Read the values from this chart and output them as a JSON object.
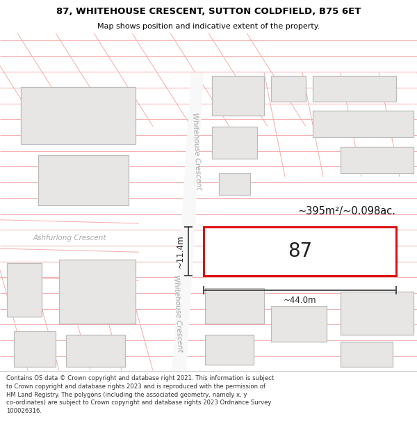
{
  "title_line1": "87, WHITEHOUSE CRESCENT, SUTTON COLDFIELD, B75 6ET",
  "title_line2": "Map shows position and indicative extent of the property.",
  "footer_text": "Contains OS data © Crown copyright and database right 2021. This information is subject\nto Crown copyright and database rights 2023 and is reproduced with the permission of\nHM Land Registry. The polygons (including the associated geometry, namely x, y\nco-ordinates) are subject to Crown copyright and database rights 2023 Ordnance Survey\n100026316.",
  "bg_color": "#ffffff",
  "map_bg": "#ffffff",
  "building_fill": "#e8e6e4",
  "building_edge": "#bbbbbb",
  "line_color": "#f5aaaa",
  "road_fill": "#ffffff",
  "highlight_fill": "#ffffff",
  "highlight_edge": "#dd1111",
  "road_label": "Whitehouse Crescent",
  "road_label2": "Whitehouse Crescent",
  "road_label3": "Ashfurlong Crescent",
  "area_text": "~395m²/~0.098ac.",
  "property_label": "87",
  "dim_width": "~44.0m",
  "dim_height": "~11.4m",
  "title_fontsize": 9.5,
  "subtitle_fontsize": 8.0,
  "footer_fontsize": 6.1
}
